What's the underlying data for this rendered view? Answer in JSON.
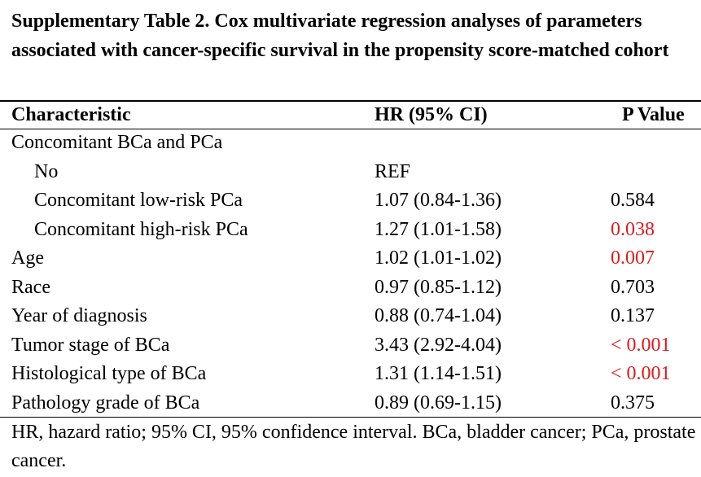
{
  "title": "Supplementary Table 2. Cox multivariate regression analyses of parameters associated with cancer-specific survival in the propensity score-matched cohort",
  "table": {
    "headers": [
      "Characteristic",
      "HR (95% CI)",
      "P Value"
    ],
    "rows": [
      {
        "characteristic": "Concomitant BCa and PCa",
        "hr": "",
        "p": "",
        "significant": false
      },
      {
        "characteristic": "No",
        "hr": "REF",
        "p": "",
        "significant": false
      },
      {
        "characteristic": "Concomitant low-risk PCa",
        "hr": "1.07 (0.84-1.36)",
        "p": "0.584",
        "significant": false
      },
      {
        "characteristic": "Concomitant high-risk PCa",
        "hr": "1.27 (1.01-1.58)",
        "p": "0.038",
        "significant": true
      },
      {
        "characteristic": "Age",
        "hr": "1.02 (1.01-1.02)",
        "p": "0.007",
        "significant": true
      },
      {
        "characteristic": "Race",
        "hr": "0.97 (0.85-1.12)",
        "p": "0.703",
        "significant": false
      },
      {
        "characteristic": "Year of diagnosis",
        "hr": "0.88 (0.74-1.04)",
        "p": "0.137",
        "significant": false
      },
      {
        "characteristic": "Tumor stage of BCa",
        "hr": "3.43 (2.92-4.04)",
        "p": "< 0.001",
        "significant": true
      },
      {
        "characteristic": "Histological type of BCa",
        "hr": "1.31 (1.14-1.51)",
        "p": "< 0.001",
        "significant": true
      },
      {
        "characteristic": "Pathology grade of BCa",
        "hr": "0.89 (0.69-1.15)",
        "p": "0.375",
        "significant": false
      }
    ]
  },
  "footnote": "HR, hazard ratio; 95% CI, 95% confidence interval. BCa, bladder cancer; PCa, prostate cancer.",
  "colors": {
    "significant": "#e0191b"
  }
}
